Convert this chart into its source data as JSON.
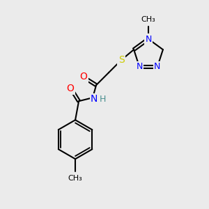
{
  "background_color": "#ebebeb",
  "bond_color": "#000000",
  "bond_width": 1.5,
  "atom_colors": {
    "N": "#0000ff",
    "O": "#ff0000",
    "S": "#cccc00",
    "H": "#4a9090",
    "C": "#000000"
  },
  "font_size": 9,
  "font_size_small": 8
}
